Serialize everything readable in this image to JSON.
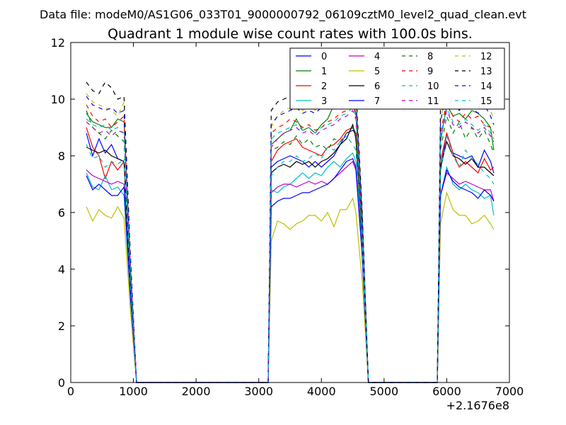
{
  "suptitle": "Data file: modeM0/AS1G06_033T01_9000000792_06109cztM0_level2_quad_clean.evt",
  "chart_data": {
    "type": "line",
    "title": "Quadrant 1 module wise count rates with 100.0s bins.",
    "xlabel": "",
    "ylabel": "",
    "x_offset_label": "+2.1676e8",
    "xlim": [
      0,
      7000
    ],
    "ylim": [
      0,
      12
    ],
    "xticks": [
      0,
      1000,
      2000,
      3000,
      4000,
      5000,
      6000,
      7000
    ],
    "xtick_labels": [
      "0",
      "1000",
      "2000",
      "3000",
      "4000",
      "5000",
      "6000",
      "7000"
    ],
    "yticks": [
      0,
      2,
      4,
      6,
      8,
      10,
      12
    ],
    "ytick_labels": [
      "0",
      "2",
      "4",
      "6",
      "8",
      "10",
      "12"
    ],
    "legend_position": "top-right",
    "legend_columns": 4,
    "x": [
      250,
      350,
      450,
      550,
      650,
      750,
      850,
      950,
      1050,
      3150,
      3200,
      3300,
      3400,
      3500,
      3600,
      3700,
      3800,
      3900,
      4000,
      4100,
      4200,
      4300,
      4400,
      4500,
      4550,
      4650,
      4750,
      5850,
      5900,
      6000,
      6100,
      6200,
      6300,
      6400,
      6500,
      6600,
      6700,
      6750
    ],
    "series": [
      {
        "name": "0",
        "color": "#0000ff",
        "dash": "solid",
        "values": [
          8.8,
          8.0,
          8.6,
          8.1,
          8.4,
          7.9,
          7.8,
          3.5,
          0,
          0,
          7.6,
          7.8,
          7.9,
          8.0,
          7.9,
          7.8,
          7.6,
          7.8,
          7.6,
          7.8,
          8.0,
          8.4,
          8.8,
          8.9,
          8.8,
          5.2,
          0,
          0,
          7.5,
          8.8,
          8.1,
          8.0,
          7.9,
          8.0,
          7.6,
          8.2,
          7.8,
          7.4
        ]
      },
      {
        "name": "1",
        "color": "#008000",
        "dash": "solid",
        "values": [
          9.5,
          9.2,
          9.1,
          9.0,
          9.0,
          9.3,
          9.2,
          4.2,
          0,
          0,
          8.4,
          8.6,
          8.8,
          8.9,
          9.3,
          8.9,
          9.0,
          8.8,
          9.1,
          9.3,
          9.8,
          10.2,
          10.3,
          10.0,
          9.5,
          5.6,
          0,
          0,
          8.5,
          9.8,
          9.4,
          9.5,
          9.3,
          9.6,
          9.5,
          9.3,
          9.0,
          8.2
        ]
      },
      {
        "name": "2",
        "color": "#ff0000",
        "dash": "solid",
        "values": [
          9.0,
          8.3,
          8.0,
          7.2,
          7.8,
          7.5,
          7.8,
          3.6,
          0,
          0,
          7.8,
          8.2,
          8.4,
          8.5,
          8.6,
          8.3,
          8.2,
          8.1,
          8.0,
          8.3,
          8.4,
          8.6,
          8.9,
          9.0,
          8.8,
          5.0,
          0,
          0,
          7.8,
          8.8,
          8.1,
          7.6,
          7.8,
          7.6,
          7.4,
          7.9,
          7.5,
          7.6
        ]
      },
      {
        "name": "3",
        "color": "#00bfbf",
        "dash": "solid",
        "values": [
          7.4,
          6.9,
          6.8,
          7.3,
          6.8,
          6.9,
          6.6,
          3.0,
          0,
          0,
          6.8,
          6.7,
          6.9,
          7.0,
          7.2,
          7.4,
          7.2,
          7.4,
          7.3,
          7.6,
          7.8,
          7.6,
          7.9,
          8.1,
          7.8,
          4.6,
          0,
          0,
          6.6,
          7.6,
          7.0,
          6.8,
          7.0,
          6.8,
          6.7,
          6.5,
          6.6,
          5.9
        ]
      },
      {
        "name": "4",
        "color": "#bf00bf",
        "dash": "solid",
        "values": [
          7.5,
          7.3,
          7.2,
          7.1,
          7.0,
          7.1,
          7.0,
          3.2,
          0,
          0,
          6.7,
          6.9,
          7.0,
          7.0,
          6.9,
          7.0,
          7.1,
          7.0,
          7.1,
          7.0,
          7.2,
          7.4,
          7.6,
          7.8,
          7.5,
          4.5,
          0,
          0,
          6.6,
          7.4,
          7.2,
          7.0,
          7.1,
          7.0,
          6.9,
          6.8,
          6.8,
          6.4
        ]
      },
      {
        "name": "5",
        "color": "#bfbf00",
        "dash": "solid",
        "values": [
          6.2,
          5.7,
          6.1,
          5.9,
          5.8,
          6.2,
          5.8,
          2.6,
          0,
          0,
          5.0,
          5.7,
          5.6,
          5.4,
          5.6,
          5.7,
          5.9,
          5.9,
          5.7,
          6.0,
          5.5,
          6.1,
          6.1,
          6.5,
          6.0,
          3.6,
          0,
          0,
          5.6,
          6.7,
          6.1,
          5.9,
          5.9,
          5.6,
          5.7,
          5.9,
          5.6,
          5.4
        ]
      },
      {
        "name": "6",
        "color": "#000000",
        "dash": "solid",
        "values": [
          8.3,
          8.2,
          8.1,
          8.2,
          8.0,
          7.9,
          7.8,
          3.6,
          0,
          0,
          7.4,
          7.6,
          7.7,
          7.6,
          7.8,
          7.7,
          7.8,
          7.6,
          7.8,
          7.9,
          8.1,
          8.4,
          8.6,
          9.1,
          8.6,
          5.0,
          0,
          0,
          7.6,
          8.5,
          8.0,
          7.9,
          7.7,
          7.9,
          7.6,
          7.6,
          7.4,
          7.3
        ]
      },
      {
        "name": "7",
        "color": "#0000ff",
        "dash": "solid",
        "values": [
          7.3,
          6.8,
          7.0,
          6.8,
          6.6,
          6.6,
          6.9,
          3.2,
          0,
          0,
          6.2,
          6.4,
          6.5,
          6.5,
          6.6,
          6.7,
          6.7,
          6.8,
          6.9,
          7.0,
          7.2,
          7.5,
          7.8,
          7.9,
          7.6,
          4.5,
          0,
          0,
          6.6,
          7.5,
          7.1,
          6.9,
          6.8,
          6.7,
          6.5,
          6.8,
          6.6,
          6.4
        ]
      },
      {
        "name": "8",
        "color": "#008000",
        "dash": "dashed",
        "values": [
          9.6,
          9.0,
          8.8,
          8.6,
          8.9,
          8.7,
          8.5,
          3.9,
          0,
          0,
          8.2,
          8.3,
          8.5,
          8.4,
          8.7,
          8.4,
          8.6,
          8.3,
          8.4,
          8.2,
          8.6,
          8.5,
          8.8,
          9.0,
          8.7,
          5.1,
          0,
          0,
          8.2,
          9.4,
          8.8,
          9.2,
          8.6,
          9.0,
          8.6,
          8.9,
          8.4,
          8.1
        ]
      },
      {
        "name": "9",
        "color": "#ff0000",
        "dash": "dashed",
        "values": [
          9.8,
          9.4,
          9.2,
          9.3,
          9.0,
          9.2,
          9.4,
          4.3,
          0,
          0,
          8.8,
          9.0,
          9.1,
          9.3,
          9.2,
          9.0,
          9.1,
          8.9,
          9.0,
          9.2,
          9.3,
          9.5,
          9.6,
          9.8,
          9.5,
          5.6,
          0,
          0,
          8.8,
          9.9,
          9.4,
          9.2,
          9.5,
          9.3,
          9.4,
          9.1,
          9.0,
          8.8
        ]
      },
      {
        "name": "10",
        "color": "#00bfbf",
        "dash": "dashed",
        "values": [
          8.4,
          7.9,
          8.0,
          7.6,
          7.8,
          7.7,
          7.9,
          3.6,
          0,
          0,
          7.3,
          7.6,
          7.8,
          7.8,
          8.0,
          7.8,
          7.9,
          8.1,
          7.9,
          8.3,
          8.2,
          8.5,
          8.7,
          8.4,
          8.2,
          4.8,
          0,
          0,
          7.4,
          8.7,
          8.0,
          7.6,
          8.2,
          7.9,
          7.7,
          7.4,
          7.2,
          7.0
        ]
      },
      {
        "name": "11",
        "color": "#bf00bf",
        "dash": "dashed",
        "values": [
          9.2,
          9.0,
          8.8,
          8.9,
          8.7,
          8.9,
          8.8,
          4.0,
          0,
          0,
          8.3,
          8.6,
          8.8,
          8.9,
          9.0,
          8.8,
          8.9,
          8.7,
          8.9,
          9.0,
          9.1,
          9.3,
          9.4,
          9.6,
          9.3,
          5.4,
          0,
          0,
          8.6,
          9.6,
          9.1,
          9.0,
          9.2,
          9.0,
          8.8,
          9.0,
          8.7,
          8.5
        ]
      },
      {
        "name": "12",
        "color": "#bfbf00",
        "dash": "dashed",
        "values": [
          10.2,
          9.9,
          9.8,
          9.7,
          9.6,
          9.4,
          9.9,
          4.5,
          0,
          0,
          9.0,
          9.4,
          9.6,
          9.7,
          9.8,
          9.6,
          9.8,
          9.6,
          9.9,
          10.0,
          10.2,
          10.4,
          10.5,
          10.6,
          10.2,
          6.0,
          0,
          0,
          9.2,
          10.5,
          9.9,
          9.8,
          10.1,
          9.9,
          9.7,
          9.9,
          9.6,
          9.3
        ]
      },
      {
        "name": "13",
        "color": "#000000",
        "dash": "dashed",
        "values": [
          10.6,
          10.3,
          10.2,
          10.6,
          10.4,
          10.0,
          10.1,
          4.6,
          0,
          0,
          9.6,
          9.9,
          10.0,
          10.1,
          10.2,
          10.1,
          10.3,
          10.2,
          10.4,
          10.5,
          10.7,
          10.8,
          10.8,
          10.7,
          10.4,
          6.1,
          0,
          0,
          9.8,
          11.0,
          10.4,
          10.2,
          10.6,
          10.3,
          10.1,
          10.4,
          10.0,
          9.7
        ]
      },
      {
        "name": "14",
        "color": "#0000ff",
        "dash": "dashed",
        "values": [
          10.1,
          9.8,
          9.7,
          9.6,
          9.7,
          9.5,
          9.6,
          4.4,
          0,
          0,
          9.1,
          9.4,
          9.5,
          9.6,
          9.7,
          9.5,
          9.6,
          9.5,
          9.7,
          9.8,
          10.0,
          10.1,
          10.3,
          10.4,
          10.0,
          5.9,
          0,
          0,
          9.2,
          10.3,
          9.8,
          9.6,
          9.9,
          9.7,
          9.5,
          9.8,
          9.4,
          9.1
        ]
      },
      {
        "name": "15",
        "color": "#00bfbf",
        "dash": "dashed",
        "values": [
          9.3,
          9.1,
          9.0,
          9.1,
          8.9,
          9.0,
          8.8,
          4.1,
          0,
          0,
          8.6,
          8.8,
          8.9,
          9.0,
          9.1,
          8.9,
          9.0,
          8.8,
          9.0,
          9.1,
          9.2,
          9.4,
          9.5,
          9.7,
          9.4,
          5.5,
          0,
          0,
          8.7,
          9.7,
          9.2,
          9.1,
          9.3,
          9.1,
          8.9,
          9.1,
          8.8,
          8.6
        ]
      }
    ]
  }
}
